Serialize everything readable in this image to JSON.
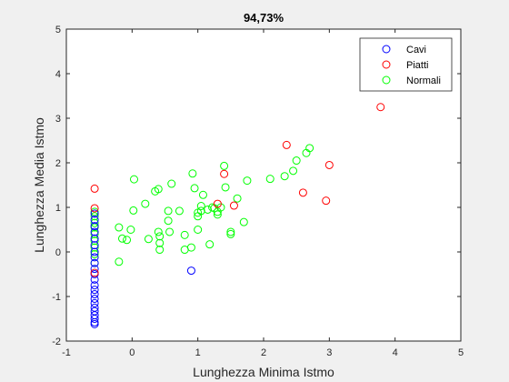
{
  "chart_data": {
    "type": "scatter",
    "title": "94,73%",
    "xlabel": "Lunghezza Minima Istmo",
    "ylabel": "Lunghezza Media Istmo",
    "xlim": [
      -1,
      5
    ],
    "ylim": [
      -2,
      5
    ],
    "xticks": [
      -1,
      0,
      1,
      2,
      3,
      4,
      5
    ],
    "yticks": [
      -2,
      -1,
      0,
      1,
      2,
      3,
      4,
      5
    ],
    "grid": false,
    "legend_position": "top-right",
    "series": [
      {
        "name": "Cavi",
        "color": "#0000ff",
        "marker": "circle",
        "points": [
          [
            -0.57,
            0.86
          ],
          [
            -0.57,
            0.72
          ],
          [
            -0.57,
            0.58
          ],
          [
            -0.57,
            0.45
          ],
          [
            -0.57,
            0.3
          ],
          [
            -0.57,
            0.15
          ],
          [
            -0.57,
            0.0
          ],
          [
            -0.57,
            -0.12
          ],
          [
            -0.57,
            -0.25
          ],
          [
            -0.57,
            -0.38
          ],
          [
            -0.57,
            -0.5
          ],
          [
            -0.57,
            -0.62
          ],
          [
            -0.57,
            -0.75
          ],
          [
            -0.57,
            -0.85
          ],
          [
            -0.57,
            -0.95
          ],
          [
            -0.57,
            -1.05
          ],
          [
            -0.57,
            -1.15
          ],
          [
            -0.57,
            -1.25
          ],
          [
            -0.57,
            -1.33
          ],
          [
            -0.57,
            -1.42
          ],
          [
            -0.57,
            -1.5
          ],
          [
            -0.57,
            -1.58
          ],
          [
            -0.57,
            -1.62
          ],
          [
            0.9,
            -0.42
          ]
        ]
      },
      {
        "name": "Piatti",
        "color": "#ff0000",
        "marker": "circle",
        "points": [
          [
            -0.57,
            1.42
          ],
          [
            -0.57,
            0.98
          ],
          [
            -0.57,
            -0.47
          ],
          [
            1.3,
            1.08
          ],
          [
            1.4,
            1.75
          ],
          [
            1.55,
            1.04
          ],
          [
            2.35,
            2.4
          ],
          [
            2.6,
            1.33
          ],
          [
            3.0,
            1.95
          ],
          [
            2.95,
            1.15
          ],
          [
            3.78,
            3.25
          ]
        ]
      },
      {
        "name": "Normali",
        "color": "#00ff00",
        "marker": "circle",
        "points": [
          [
            -0.57,
            0.9
          ],
          [
            -0.57,
            0.8
          ],
          [
            -0.57,
            0.65
          ],
          [
            -0.57,
            0.55
          ],
          [
            -0.57,
            0.4
          ],
          [
            -0.57,
            0.25
          ],
          [
            -0.57,
            0.1
          ],
          [
            -0.57,
            -0.05
          ],
          [
            -0.57,
            -0.25
          ],
          [
            -0.2,
            0.55
          ],
          [
            -0.15,
            0.3
          ],
          [
            -0.2,
            -0.22
          ],
          [
            -0.08,
            0.27
          ],
          [
            -0.02,
            0.5
          ],
          [
            0.02,
            0.93
          ],
          [
            0.03,
            1.63
          ],
          [
            0.2,
            1.08
          ],
          [
            0.25,
            0.29
          ],
          [
            0.35,
            1.36
          ],
          [
            0.4,
            1.41
          ],
          [
            0.4,
            0.45
          ],
          [
            0.42,
            0.35
          ],
          [
            0.42,
            0.2
          ],
          [
            0.42,
            0.05
          ],
          [
            0.55,
            0.92
          ],
          [
            0.55,
            0.7
          ],
          [
            0.57,
            0.45
          ],
          [
            0.6,
            1.53
          ],
          [
            0.72,
            0.92
          ],
          [
            0.8,
            0.38
          ],
          [
            0.8,
            0.05
          ],
          [
            0.9,
            0.1
          ],
          [
            0.92,
            1.76
          ],
          [
            0.95,
            1.43
          ],
          [
            1.0,
            0.88
          ],
          [
            1.0,
            0.8
          ],
          [
            1.0,
            0.5
          ],
          [
            1.05,
            0.92
          ],
          [
            1.05,
            1.03
          ],
          [
            1.08,
            1.28
          ],
          [
            1.15,
            0.95
          ],
          [
            1.18,
            0.17
          ],
          [
            1.22,
            1.0
          ],
          [
            1.25,
            0.98
          ],
          [
            1.3,
            0.84
          ],
          [
            1.3,
            0.9
          ],
          [
            1.35,
            1.0
          ],
          [
            1.4,
            1.93
          ],
          [
            1.42,
            1.45
          ],
          [
            1.5,
            0.45
          ],
          [
            1.5,
            0.4
          ],
          [
            1.6,
            1.2
          ],
          [
            1.7,
            0.67
          ],
          [
            1.75,
            1.6
          ],
          [
            2.1,
            1.64
          ],
          [
            2.32,
            1.7
          ],
          [
            2.45,
            1.82
          ],
          [
            2.5,
            2.05
          ],
          [
            2.65,
            2.22
          ],
          [
            2.7,
            2.33
          ]
        ]
      }
    ]
  }
}
